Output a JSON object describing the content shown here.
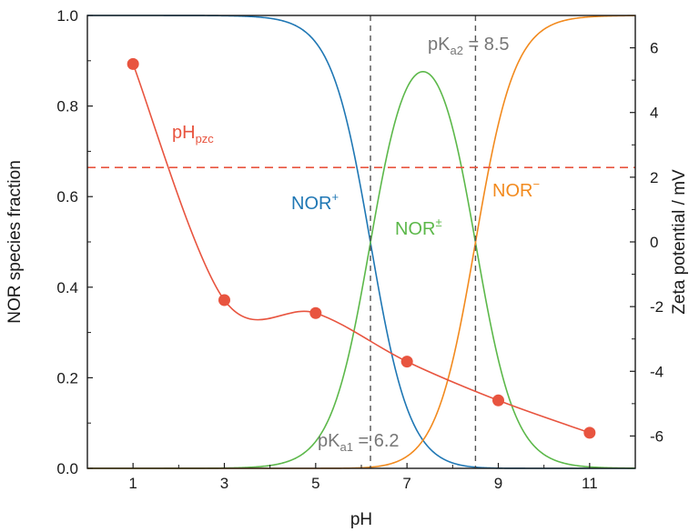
{
  "chart_data": {
    "type": "line",
    "xlabel": "pH",
    "ylabel": "NOR species fraction",
    "y2label": "Zeta potential / mV",
    "xlim": [
      0,
      12
    ],
    "ylim": [
      0,
      1.0
    ],
    "y2lim": [
      -7,
      7
    ],
    "x_ticks": [
      "1",
      "3",
      "5",
      "7",
      "9",
      "11"
    ],
    "x_tick_values": [
      1,
      3,
      5,
      7,
      9,
      11
    ],
    "y_ticks": [
      "0.0",
      "0.2",
      "0.4",
      "0.6",
      "0.8",
      "1.0"
    ],
    "y_tick_values": [
      0,
      0.2,
      0.4,
      0.6,
      0.8,
      1.0
    ],
    "y2_ticks": [
      "-6",
      "-4",
      "-2",
      "0",
      "2",
      "4",
      "6"
    ],
    "y2_tick_values": [
      -6,
      -4,
      -2,
      0,
      2,
      4,
      6
    ],
    "grid": false,
    "pKa1": 6.2,
    "pKa2": 8.5,
    "pHpzc_zeta": 2.3,
    "colors": {
      "cation": "#1f77b4",
      "zwitterion": "#5cb84a",
      "anion": "#f28a1e",
      "zeta": "#e8543f",
      "reference": "#555555",
      "annotation": "#777777"
    },
    "species": [
      {
        "key": "cation",
        "base": "NOR",
        "sup": "+"
      },
      {
        "key": "zwitterion",
        "base": "NOR",
        "sup": "±"
      },
      {
        "key": "anion",
        "base": "NOR",
        "sup": "−"
      }
    ],
    "zeta_series": {
      "x": [
        1,
        3,
        5,
        7,
        9,
        11
      ],
      "y": [
        5.5,
        -1.8,
        -2.2,
        -3.7,
        -4.9,
        -5.9
      ]
    },
    "annotations": {
      "pka1": {
        "base": "pK",
        "sub": "a1",
        "rest": " = 6.2"
      },
      "pka2": {
        "base": "pK",
        "sub": "a2",
        "rest": " = 8.5"
      },
      "pzc": {
        "base": "pH",
        "sub": "pzc"
      }
    }
  }
}
